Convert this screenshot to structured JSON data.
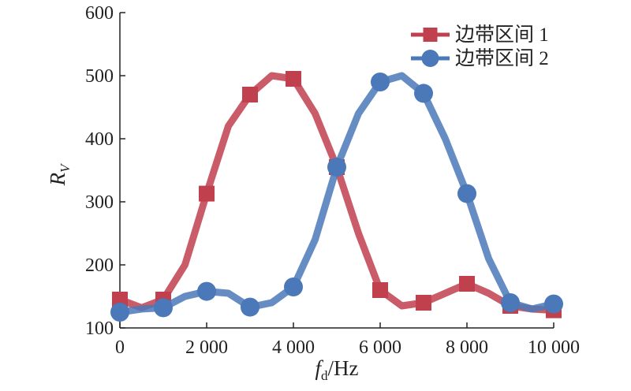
{
  "chart_data": {
    "type": "line",
    "title": "",
    "xlabel": {
      "main": "f",
      "sub": "d",
      "unit": "/Hz"
    },
    "ylabel": {
      "main": "R",
      "sub": "V"
    },
    "xlim": [
      0,
      10000
    ],
    "ylim": [
      100,
      600
    ],
    "x_ticks": [
      0,
      2000,
      4000,
      6000,
      8000,
      10000
    ],
    "x_tick_labels": [
      "0",
      "2 000",
      "4 000",
      "6 000",
      "8 000",
      "10 000"
    ],
    "y_ticks": [
      100,
      200,
      300,
      400,
      500,
      600
    ],
    "y_tick_labels": [
      "100",
      "200",
      "300",
      "400",
      "500",
      "600"
    ],
    "grid": false,
    "legend_position": "top-right",
    "series": [
      {
        "name": "边带区间 1",
        "color": "#c0404e",
        "marker": "square",
        "x": [
          0,
          500,
          1000,
          1500,
          2000,
          2500,
          3000,
          3500,
          4000,
          4500,
          5000,
          5500,
          6000,
          6500,
          7000,
          7500,
          8000,
          8500,
          9000,
          9500,
          10000
        ],
        "y": [
          145,
          132,
          145,
          200,
          313,
          420,
          470,
          500,
          495,
          440,
          355,
          250,
          160,
          135,
          140,
          155,
          170,
          155,
          135,
          130,
          128
        ],
        "marker_x": [
          0,
          1000,
          2000,
          3000,
          4000,
          5000,
          6000,
          7000,
          8000,
          9000,
          10000
        ],
        "marker_y": [
          145,
          145,
          313,
          470,
          495,
          355,
          160,
          140,
          170,
          135,
          128
        ]
      },
      {
        "name": "边带区间 2",
        "color": "#4a78b8",
        "marker": "circle",
        "x": [
          0,
          500,
          1000,
          1500,
          2000,
          2500,
          3000,
          3500,
          4000,
          4500,
          5000,
          5500,
          6000,
          6500,
          7000,
          7500,
          8000,
          8500,
          9000,
          9500,
          10000
        ],
        "y": [
          125,
          130,
          132,
          150,
          158,
          155,
          133,
          140,
          165,
          240,
          355,
          440,
          490,
          500,
          472,
          400,
          313,
          210,
          140,
          130,
          138
        ],
        "marker_x": [
          0,
          1000,
          2000,
          3000,
          4000,
          5000,
          6000,
          7000,
          8000,
          9000,
          10000
        ],
        "marker_y": [
          125,
          132,
          158,
          133,
          165,
          355,
          490,
          472,
          313,
          140,
          138
        ]
      }
    ]
  }
}
